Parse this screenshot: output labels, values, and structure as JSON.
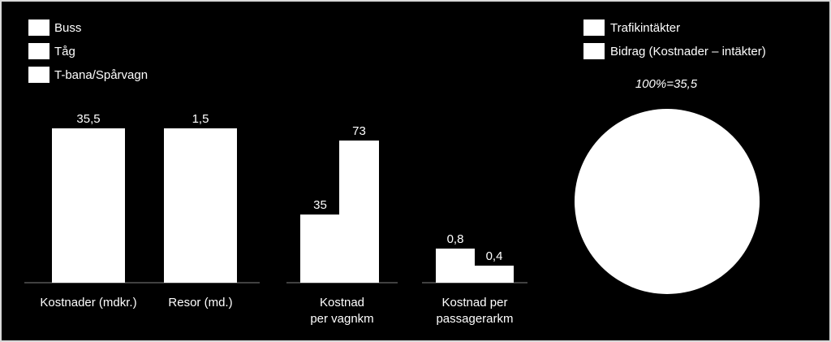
{
  "colors": {
    "background": "#000000",
    "bar": "#ffffff",
    "text": "#ffffff",
    "axis": "#7f7f7f",
    "border": "#d9d9d9"
  },
  "chart_data": [
    {
      "type": "bar",
      "title": "",
      "legend": {
        "placement": "top-left",
        "entries": [
          "Buss",
          "Tåg",
          "T-bana/Spårvagn"
        ]
      },
      "groups": [
        {
          "category": [
            "Kostnader (mdkr.)"
          ],
          "bars": [
            {
              "value": 35.5,
              "label": "35,5"
            }
          ]
        },
        {
          "category": [
            "Resor (md.)"
          ],
          "bars": [
            {
              "value": 1.5,
              "label": "1,5"
            }
          ]
        },
        {
          "category": [
            "Kostnad",
            "per vagnkm"
          ],
          "bars": [
            {
              "value": 35,
              "label": "35"
            },
            {
              "value": 73,
              "label": "73"
            }
          ]
        },
        {
          "category": [
            "Kostnad per",
            "passagerarkm"
          ],
          "bars": [
            {
              "value": 0.8,
              "label": "0,8"
            },
            {
              "value": 0.4,
              "label": "0,4"
            }
          ]
        }
      ]
    },
    {
      "type": "pie",
      "title": "",
      "legend": {
        "placement": "top",
        "entries": [
          "Trafikintäkter",
          "Bidrag (Kostnader – intäkter)"
        ]
      },
      "annotation": "100%=35,5",
      "slices": [
        {
          "value": 1.0
        }
      ]
    }
  ]
}
